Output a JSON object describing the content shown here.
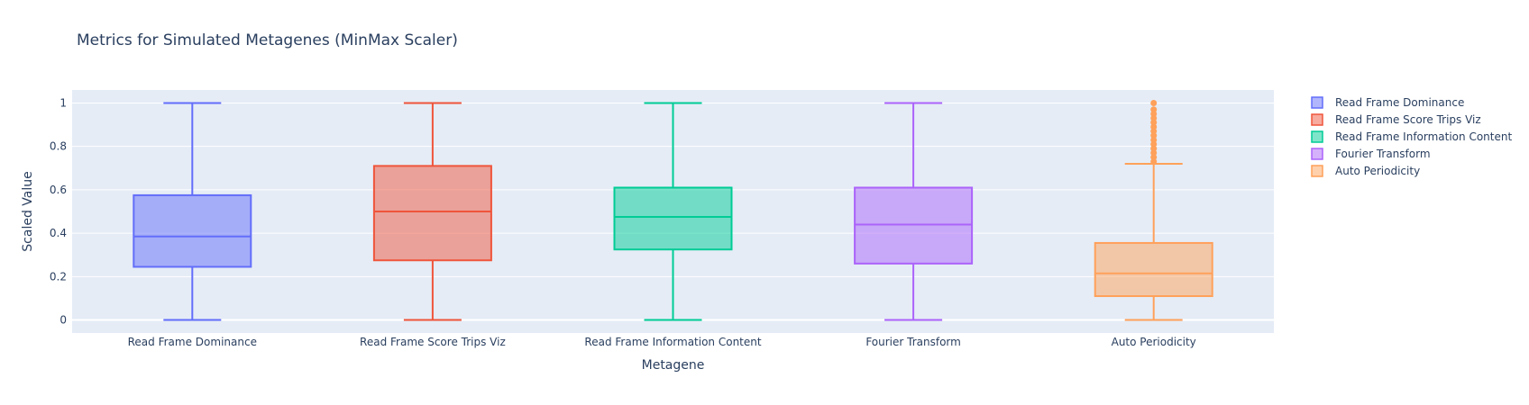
{
  "chart_data": {
    "type": "box",
    "title": "Metrics for Simulated Metagenes (MinMax Scaler)",
    "xlabel": "Metagene",
    "ylabel": "Scaled Value",
    "ylim": [
      -0.06,
      1.06
    ],
    "yticks": [
      0,
      0.2,
      0.4,
      0.6,
      0.8,
      1
    ],
    "ytick_labels": [
      "0",
      "0.2",
      "0.4",
      "0.6",
      "0.8",
      "1"
    ],
    "grid": true,
    "legend_position": "top-right",
    "categories": [
      "Read Frame Dominance",
      "Read Frame Score Trips Viz",
      "Read Frame Information Content",
      "Fourier Transform",
      "Auto Periodicity"
    ],
    "series": [
      {
        "name": "Read Frame Dominance",
        "color": "#636efa",
        "min": 0,
        "q1": 0.245,
        "median": 0.385,
        "q3": 0.575,
        "max": 1,
        "outliers": []
      },
      {
        "name": "Read Frame Score Trips Viz",
        "color": "#EF553B",
        "min": 0,
        "q1": 0.275,
        "median": 0.5,
        "q3": 0.71,
        "max": 1,
        "outliers": []
      },
      {
        "name": "Read Frame Information Content",
        "color": "#00cc96",
        "min": 0,
        "q1": 0.325,
        "median": 0.475,
        "q3": 0.61,
        "max": 1,
        "outliers": []
      },
      {
        "name": "Fourier Transform",
        "color": "#ab63fa",
        "min": 0,
        "q1": 0.26,
        "median": 0.44,
        "q3": 0.61,
        "max": 1,
        "outliers": []
      },
      {
        "name": "Auto Periodicity",
        "color": "#FFA15A",
        "min": 0,
        "q1": 0.11,
        "median": 0.215,
        "q3": 0.355,
        "max": 0.72,
        "outliers": [
          0.73,
          0.75,
          0.77,
          0.79,
          0.81,
          0.83,
          0.85,
          0.87,
          0.89,
          0.91,
          0.93,
          0.95,
          0.97,
          1.0
        ]
      }
    ]
  }
}
